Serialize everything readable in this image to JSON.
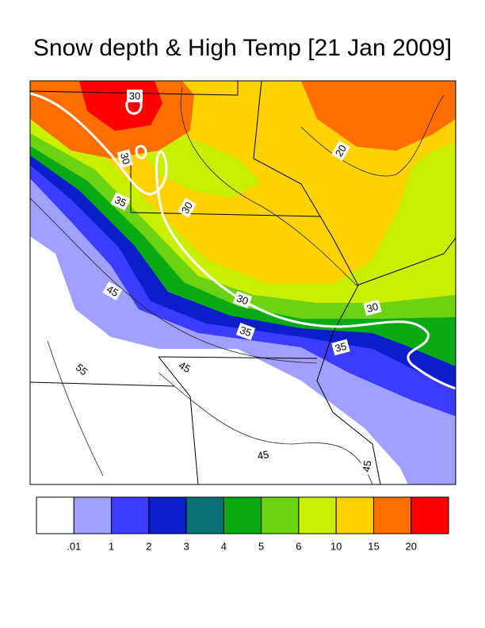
{
  "title": "Snow depth & High Temp [21 Jan 2009]",
  "map": {
    "contour_labels": [
      "30",
      "30",
      "35",
      "30",
      "20",
      "45",
      "30",
      "35",
      "30",
      "35",
      "45",
      "55",
      "45",
      "45"
    ]
  },
  "colorbar": {
    "colors": [
      "#ffffff",
      "#a0a0ff",
      "#3c3cff",
      "#0a1ecc",
      "#0a7378",
      "#0aaa14",
      "#6cd214",
      "#c8f000",
      "#ffd200",
      "#ff6e00",
      "#ff0000"
    ],
    "labels": [
      ".01",
      "1",
      "2",
      "3",
      "4",
      "5",
      "6",
      "10",
      "15",
      "20"
    ]
  }
}
